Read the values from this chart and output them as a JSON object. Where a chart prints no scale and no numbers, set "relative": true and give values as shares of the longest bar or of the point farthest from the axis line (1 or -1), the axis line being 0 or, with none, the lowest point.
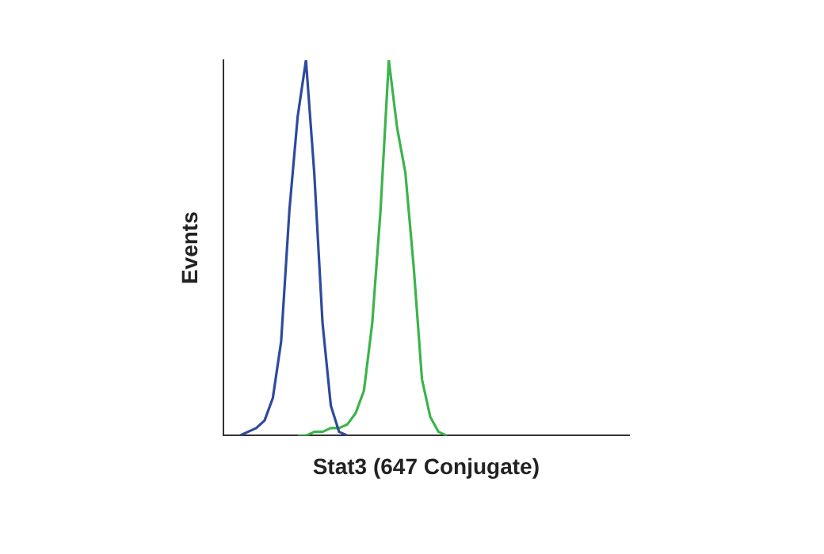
{
  "chart_data": {
    "type": "line",
    "relative": true,
    "xlabel": "Stat3 (647 Conjugate)",
    "ylabel": "Events",
    "legend": false,
    "grid": false,
    "marker": "none",
    "tick_labels": false,
    "categories": [
      null,
      null,
      null,
      null,
      null,
      null,
      null,
      null,
      null,
      null,
      null,
      null,
      null,
      null,
      null,
      null,
      null,
      null,
      null,
      null,
      null,
      null,
      null,
      null,
      null,
      null,
      null,
      null,
      null,
      null,
      null,
      null,
      null,
      null,
      null,
      null,
      null,
      null,
      null,
      null,
      null,
      null,
      null,
      null,
      null,
      null,
      null,
      null,
      null,
      null
    ],
    "series": [
      {
        "color": "#2e4a9e",
        "values": [
          null,
          null,
          0,
          0.01,
          0.02,
          0.04,
          0.1,
          0.25,
          0.6,
          0.85,
          1,
          0.7,
          0.3,
          0.08,
          0.01,
          0,
          null,
          null,
          null,
          null,
          null,
          null,
          null,
          null,
          null,
          null,
          null,
          null,
          null,
          null,
          null,
          null,
          null,
          null,
          null,
          null,
          null,
          null,
          null,
          null,
          null,
          null,
          null,
          null,
          null,
          null,
          null,
          null,
          null,
          null
        ]
      },
      {
        "color": "#3cb44a",
        "values": [
          null,
          null,
          null,
          null,
          null,
          null,
          null,
          null,
          null,
          0,
          0,
          0.01,
          0.01,
          0.02,
          0.02,
          0.03,
          0.06,
          0.12,
          0.3,
          0.6,
          1,
          0.82,
          0.7,
          0.45,
          0.15,
          0.05,
          0.01,
          0,
          null,
          null,
          null,
          null,
          null,
          null,
          null,
          null,
          null,
          null,
          null,
          null,
          null,
          null,
          null,
          null,
          null,
          null,
          null,
          null,
          null,
          null
        ]
      }
    ]
  }
}
